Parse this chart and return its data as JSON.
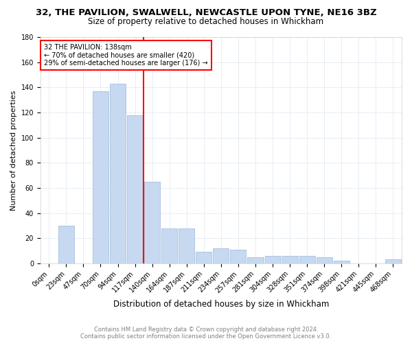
{
  "title": "32, THE PAVILION, SWALWELL, NEWCASTLE UPON TYNE, NE16 3BZ",
  "subtitle": "Size of property relative to detached houses in Whickham",
  "xlabel": "Distribution of detached houses by size in Whickham",
  "ylabel": "Number of detached properties",
  "footer_line1": "Contains HM Land Registry data © Crown copyright and database right 2024.",
  "footer_line2": "Contains public sector information licensed under the Open Government Licence v3.0.",
  "bar_labels": [
    "0sqm",
    "23sqm",
    "47sqm",
    "70sqm",
    "94sqm",
    "117sqm",
    "140sqm",
    "164sqm",
    "187sqm",
    "211sqm",
    "234sqm",
    "257sqm",
    "281sqm",
    "304sqm",
    "328sqm",
    "351sqm",
    "374sqm",
    "398sqm",
    "421sqm",
    "445sqm",
    "468sqm"
  ],
  "bar_values": [
    0,
    30,
    0,
    137,
    143,
    118,
    65,
    28,
    28,
    9,
    12,
    11,
    5,
    6,
    6,
    6,
    5,
    2,
    0,
    0,
    3
  ],
  "bar_color": "#c6d9f0",
  "bar_edge_color": "#9ab7d8",
  "grid_color": "#dce6f1",
  "annotation_text1": "32 THE PAVILION: 138sqm",
  "annotation_text2": "← 70% of detached houses are smaller (420)",
  "annotation_text3": "29% of semi-detached houses are larger (176) →",
  "ylim": [
    0,
    180
  ],
  "title_fontsize": 9.5,
  "subtitle_fontsize": 8.5,
  "xlabel_fontsize": 8.5,
  "ylabel_fontsize": 8,
  "tick_fontsize": 7,
  "annotation_fontsize": 7,
  "footer_fontsize": 6
}
